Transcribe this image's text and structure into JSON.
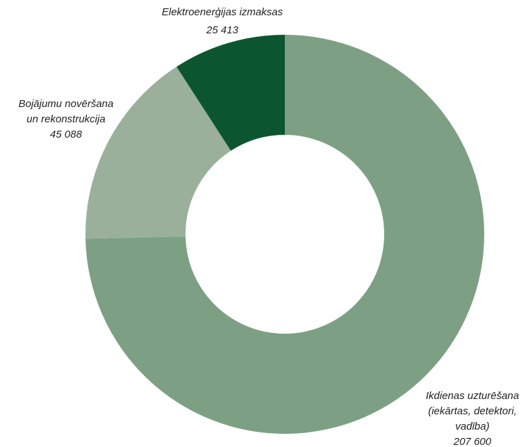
{
  "chart_data": {
    "type": "donut",
    "categories": [
      "Ikdienas uzturēšana\n(iekārtas, detektori,\nvadība)",
      "Bojājumu novēršana\nun rekonstrukcija",
      "Elektroenerģijas izmaksas"
    ],
    "values": [
      207600,
      45088,
      25413
    ],
    "value_labels": [
      "207 600",
      "45 088",
      "25 413"
    ],
    "colors": [
      "#7da084",
      "#9ab09b",
      "#0b5630"
    ]
  }
}
